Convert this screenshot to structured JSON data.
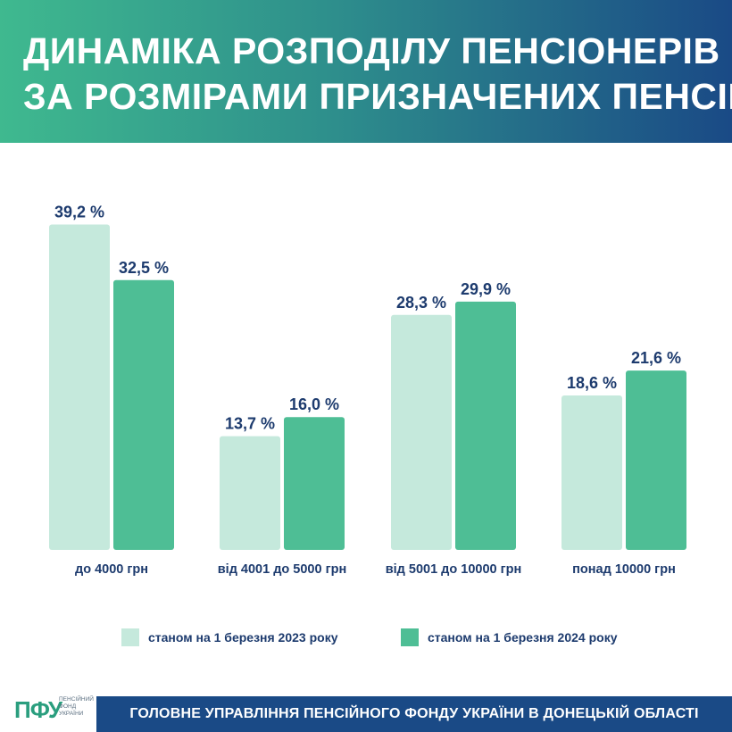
{
  "header": {
    "title_line1": "ДИНАМІКА РОЗПОДІЛУ ПЕНСІОНЕРІВ",
    "title_line2": "ЗА РОЗМІРАМИ ПРИЗНАЧЕНИХ ПЕНСІЙ"
  },
  "colors": {
    "series_2023": "#c5e9dc",
    "series_2024": "#4ebe95",
    "label_text": "#1d3b6e",
    "header_start": "#3fb98f",
    "header_end": "#1a4a86"
  },
  "chart_data": {
    "type": "bar",
    "categories": [
      "до 4000 грн",
      "від 4001 до 5000 грн",
      "від 5001 до 10000 грн",
      "понад 10000 грн"
    ],
    "series": [
      {
        "name": "станом на 1 березня 2023 року",
        "values": [
          39.2,
          13.7,
          28.3,
          18.6
        ],
        "labels": [
          "39,2 %",
          "13,7 %",
          "28,3 %",
          "18,6 %"
        ]
      },
      {
        "name": "станом на 1 березня 2024 року",
        "values": [
          32.5,
          16.0,
          29.9,
          21.6
        ],
        "labels": [
          "32,5 %",
          "16,0 %",
          "29,9 %",
          "21,6 %"
        ]
      }
    ],
    "unit": "%",
    "ylim": [
      0,
      40
    ],
    "grid": false,
    "legend_position": "bottom"
  },
  "legend": {
    "item1": "станом на 1 березня 2023 року",
    "item2": "станом на 1 березня 2024 року"
  },
  "footer": {
    "logo_mark": "ПФУ",
    "logo_line1": "Пенсійний",
    "logo_line2": "фонд",
    "logo_line3": "України",
    "org_name": "ГОЛОВНЕ УПРАВЛІННЯ ПЕНСІЙНОГО ФОНДУ УКРАЇНИ В ДОНЕЦЬКІЙ ОБЛАСТІ"
  }
}
